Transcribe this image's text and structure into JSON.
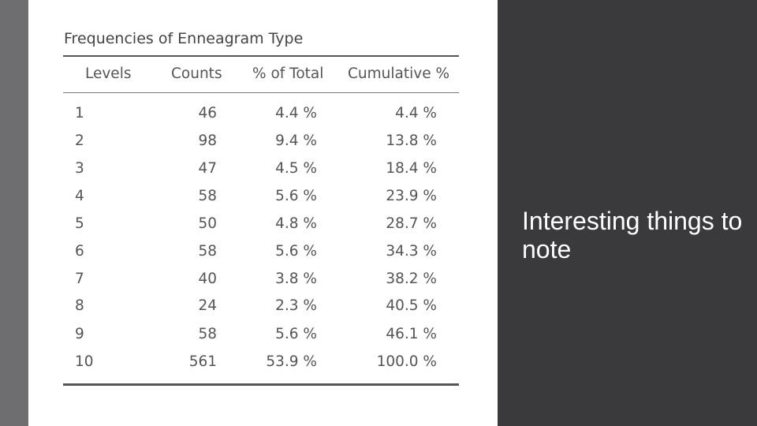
{
  "table": {
    "title": "Frequencies of Enneagram Type",
    "headers": {
      "levels": "Levels",
      "counts": "Counts",
      "pct_total": "% of Total",
      "cumulative": "Cumulative %"
    },
    "rows": [
      {
        "level": "1",
        "count": "46",
        "pct": "4.4 %",
        "cum": "4.4 %"
      },
      {
        "level": "2",
        "count": "98",
        "pct": "9.4 %",
        "cum": "13.8 %"
      },
      {
        "level": "3",
        "count": "47",
        "pct": "4.5 %",
        "cum": "18.4 %"
      },
      {
        "level": "4",
        "count": "58",
        "pct": "5.6 %",
        "cum": "23.9 %"
      },
      {
        "level": "5",
        "count": "50",
        "pct": "4.8 %",
        "cum": "28.7 %"
      },
      {
        "level": "6",
        "count": "58",
        "pct": "5.6 %",
        "cum": "34.3 %"
      },
      {
        "level": "7",
        "count": "40",
        "pct": "3.8 %",
        "cum": "38.2 %"
      },
      {
        "level": "8",
        "count": "24",
        "pct": "2.3 %",
        "cum": "40.5 %"
      },
      {
        "level": "9",
        "count": "58",
        "pct": "5.6 %",
        "cum": "46.1 %"
      },
      {
        "level": "10",
        "count": "561",
        "pct": "53.9 %",
        "cum": "100.0 %"
      }
    ]
  },
  "side_note": {
    "text": "Interesting things to note"
  },
  "colors": {
    "background_dark": "#3a3a3c",
    "left_bar": "#6e6e70",
    "panel": "#ffffff",
    "table_text": "#555555"
  }
}
